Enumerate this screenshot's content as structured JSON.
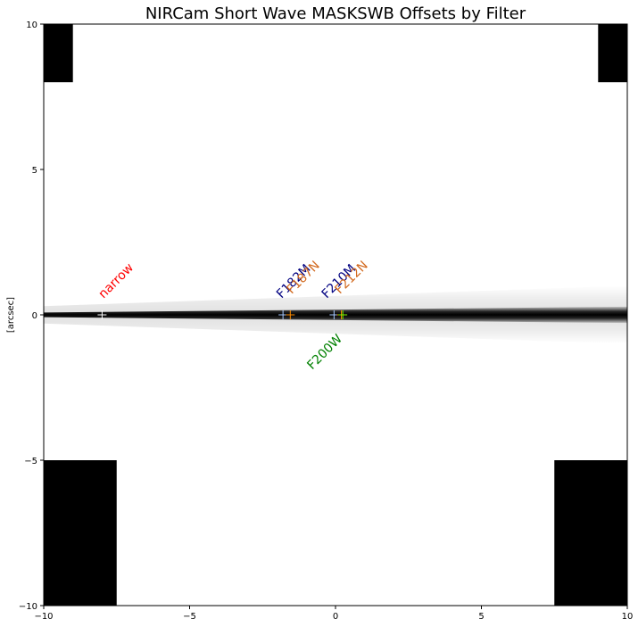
{
  "chart_data": {
    "type": "scatter",
    "title": "NIRCam Short Wave MASKSWB Offsets by Filter",
    "xlabel": "",
    "ylabel": "[arcsec]",
    "xlim": [
      -10,
      10
    ],
    "ylim": [
      -10,
      10
    ],
    "xticks": [
      -10,
      -5,
      0,
      5,
      10
    ],
    "yticks": [
      -10,
      -5,
      0,
      5,
      10
    ],
    "xtick_labels": [
      "−10",
      "−5",
      "0",
      "5",
      "10"
    ],
    "ytick_labels": [
      "−10",
      "−5",
      "0",
      "5",
      "10"
    ],
    "grid": false,
    "background_mask": {
      "description_free": true,
      "corner_blocks": [
        {
          "x": [
            -10,
            -9
          ],
          "y": [
            8,
            10
          ]
        },
        {
          "x": [
            9,
            10
          ],
          "y": [
            8,
            10
          ]
        },
        {
          "x": [
            -10,
            -7.5
          ],
          "y": [
            -10,
            -5
          ]
        },
        {
          "x": [
            7.5,
            10
          ],
          "y": [
            -10,
            -5
          ]
        }
      ],
      "wedge": {
        "x_start": -10,
        "x_end": 10,
        "core_halfwidth_start": 0.08,
        "core_halfwidth_end": 0.28,
        "halo_halfwidth_start": 0.3,
        "halo_halfwidth_end": 1.0
      }
    },
    "points": [
      {
        "label": "narrow",
        "x": -8.0,
        "y": 0.0,
        "marker_color": "#ffffff",
        "label_color": "#ff0000",
        "label_dx": 0.05,
        "label_dy": 0.55
      },
      {
        "label": "F182M",
        "x": -1.8,
        "y": 0.0,
        "marker_color": "#a6c8ff",
        "label_color": "#000080",
        "label_dx": -0.05,
        "label_dy": 0.55
      },
      {
        "label": "F187N",
        "x": -1.55,
        "y": 0.0,
        "marker_color": "#ff8c00",
        "label_color": "#d2691e",
        "label_dx": 0.05,
        "label_dy": 0.7
      },
      {
        "label": "F210M",
        "x": -0.05,
        "y": 0.0,
        "marker_color": "#a6c8ff",
        "label_color": "#000080",
        "label_dx": -0.25,
        "label_dy": 0.55
      },
      {
        "label": "F212N",
        "x": 0.2,
        "y": 0.0,
        "marker_color": "#ff8c00",
        "label_color": "#d2691e",
        "label_dx": -0.05,
        "label_dy": 0.7
      },
      {
        "label": "F200W",
        "x": 0.25,
        "y": 0.0,
        "marker_color": "#7cfc00",
        "label_color": "#008000",
        "label_dx": -1.05,
        "label_dy": -1.9
      }
    ]
  }
}
